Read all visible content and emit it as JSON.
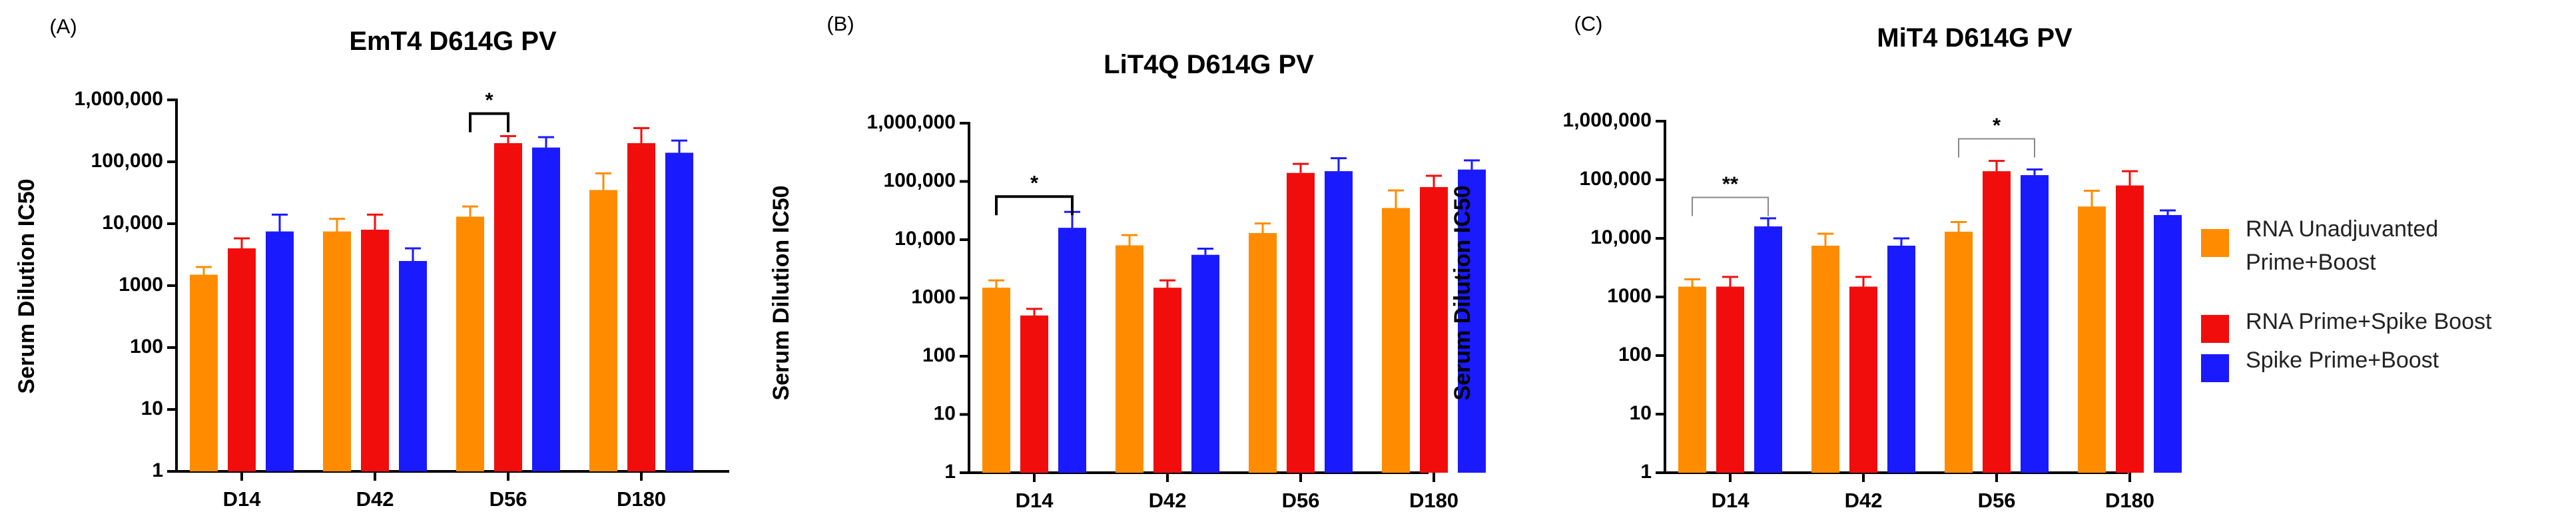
{
  "colors": {
    "RNA Unadjuvanted Prime+Boost": "#ff8c00",
    "RNA Prime+Spike Boost": "#f20d0d",
    "Spike Prime+Boost": "#1a1aff"
  },
  "legend": {
    "items": [
      {
        "label_lines": [
          "RNA Unadjuvanted",
          "Prime+Boost"
        ],
        "series": "RNA Unadjuvanted Prime+Boost"
      },
      {
        "label_lines": [
          "RNA Prime+Spike Boost"
        ],
        "series": "RNA Prime+Spike Boost"
      },
      {
        "label_lines": [
          "Spike Prime+Boost"
        ],
        "series": "Spike Prime+Boost"
      }
    ]
  },
  "chart_data": [
    {
      "type": "bar",
      "panel_label": "(A)",
      "title": "EmT4 D614G PV",
      "xlabel": "",
      "ylabel": "Serum Dilution IC50",
      "yscale": "log",
      "ylim": [
        1,
        1000000
      ],
      "yticks": [
        "1",
        "10",
        "100",
        "1000",
        "10,000",
        "100,000",
        "1,000,000"
      ],
      "categories": [
        "D14",
        "D42",
        "D56",
        "D180"
      ],
      "series": [
        {
          "name": "RNA Unadjuvanted Prime+Boost",
          "values": [
            1500,
            7500,
            13000,
            35000
          ],
          "errors": [
            2000,
            12000,
            19000,
            65000
          ]
        },
        {
          "name": "RNA Prime+Spike Boost",
          "values": [
            4000,
            8000,
            200000,
            200000
          ],
          "errors": [
            5800,
            14000,
            260000,
            350000
          ]
        },
        {
          "name": "Spike Prime+Boost",
          "values": [
            7500,
            2500,
            170000,
            140000
          ],
          "errors": [
            14000,
            4000,
            250000,
            220000
          ]
        }
      ],
      "significance": [
        {
          "label": "*",
          "category_from": 2,
          "series_from": 0,
          "category_to": 2,
          "series_to": 1,
          "y": 600000
        }
      ]
    },
    {
      "type": "bar",
      "panel_label": "(B)",
      "title": "LiT4Q D614G PV",
      "xlabel": "",
      "ylabel": "Serum Dilution IC50",
      "yscale": "log",
      "ylim": [
        1,
        1000000
      ],
      "yticks": [
        "1",
        "10",
        "100",
        "1000",
        "10,000",
        "100,000",
        "1,000,000"
      ],
      "categories": [
        "D14",
        "D42",
        "D56",
        "D180"
      ],
      "series": [
        {
          "name": "RNA Unadjuvanted Prime+Boost",
          "values": [
            1500,
            8000,
            13000,
            35000
          ],
          "errors": [
            2000,
            12000,
            19000,
            70000
          ]
        },
        {
          "name": "RNA Prime+Spike Boost",
          "values": [
            500,
            1500,
            140000,
            80000
          ],
          "errors": [
            650,
            2000,
            200000,
            125000
          ]
        },
        {
          "name": "Spike Prime+Boost",
          "values": [
            16000,
            5500,
            150000,
            160000
          ],
          "errors": [
            30000,
            7000,
            250000,
            230000
          ]
        }
      ],
      "significance": [
        {
          "label": "*",
          "category_from": 0,
          "series_from": 0,
          "category_to": 0,
          "series_to": 2,
          "y": 55000
        }
      ]
    },
    {
      "type": "bar",
      "panel_label": "(C)",
      "title": "MiT4 D614G PV",
      "xlabel": "",
      "ylabel": "Serum Dilution IC50",
      "yscale": "log",
      "ylim": [
        1,
        1000000
      ],
      "yticks": [
        "1",
        "10",
        "100",
        "1000",
        "10,000",
        "100,000",
        "1,000,000"
      ],
      "categories": [
        "D14",
        "D42",
        "D56",
        "D180"
      ],
      "series": [
        {
          "name": "RNA Unadjuvanted Prime+Boost",
          "values": [
            1500,
            7500,
            13000,
            35000
          ],
          "errors": [
            2000,
            12000,
            19000,
            65000
          ]
        },
        {
          "name": "RNA Prime+Spike Boost",
          "values": [
            1500,
            1500,
            140000,
            80000
          ],
          "errors": [
            2200,
            2200,
            210000,
            140000
          ]
        },
        {
          "name": "Spike Prime+Boost",
          "values": [
            16000,
            7500,
            120000,
            25000
          ],
          "errors": [
            22000,
            10000,
            150000,
            30000
          ]
        }
      ],
      "significance": [
        {
          "label": "**",
          "category_from": 0,
          "series_from": 0,
          "category_to": 0,
          "series_to": 2,
          "y": 50000
        },
        {
          "label": "*",
          "category_from": 2,
          "series_from": 0,
          "category_to": 2,
          "series_to": 2,
          "y": 500000
        }
      ]
    }
  ]
}
